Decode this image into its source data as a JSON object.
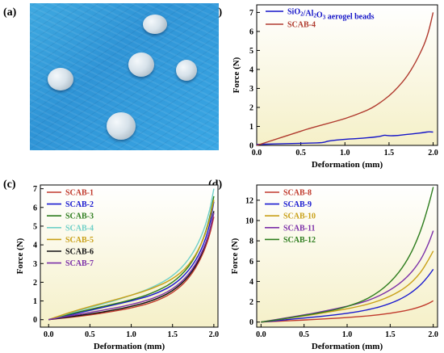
{
  "panels": {
    "a": "(a)",
    "b": "(b)",
    "c": "(c)",
    "d": "(d)"
  },
  "colors": {
    "bg_top": "#ffffff",
    "bg_bottom": "#f5f0c8"
  },
  "chart_data": [
    {
      "id": "b",
      "type": "line",
      "xlabel": "Deformation (mm)",
      "ylabel": "Force (N)",
      "xlim": [
        0,
        2.05
      ],
      "ylim": [
        0,
        7.4
      ],
      "xticks": [
        "0.0",
        "0.5",
        "1.0",
        "1.5",
        "2.0"
      ],
      "yticks": [
        "0",
        "1",
        "2",
        "3",
        "4",
        "5",
        "6",
        "7"
      ],
      "legend": "top-left",
      "series": [
        {
          "name": "SiO2/Al2O3 aerogel beads",
          "label_main": "SiO",
          "label_sub1": "2",
          "label_mid": "/Al",
          "label_sub2": "2",
          "label_o": "O",
          "label_sub3": "3",
          "label_tail": " aerogel beads",
          "color": "#1515c8",
          "x": [
            0,
            0.2,
            0.4,
            0.6,
            0.75,
            0.8,
            0.9,
            1.0,
            1.1,
            1.2,
            1.3,
            1.4,
            1.45,
            1.5,
            1.6,
            1.7,
            1.8,
            1.9,
            1.95,
            2.0
          ],
          "y": [
            0.05,
            0.08,
            0.1,
            0.12,
            0.14,
            0.22,
            0.28,
            0.32,
            0.35,
            0.38,
            0.42,
            0.47,
            0.55,
            0.5,
            0.52,
            0.58,
            0.62,
            0.68,
            0.72,
            0.7
          ]
        },
        {
          "name": "SCAB-4",
          "color": "#b03a2e",
          "x": [
            0,
            0.2,
            0.4,
            0.6,
            0.8,
            1.0,
            1.2,
            1.3,
            1.4,
            1.5,
            1.6,
            1.7,
            1.8,
            1.9,
            1.95,
            2.0
          ],
          "y": [
            0,
            0.3,
            0.6,
            0.9,
            1.15,
            1.4,
            1.75,
            1.95,
            2.25,
            2.6,
            3.05,
            3.6,
            4.35,
            5.3,
            6.0,
            7.0
          ]
        }
      ]
    },
    {
      "id": "c",
      "type": "line",
      "xlabel": "Deformation (mm)",
      "ylabel": "Force (N)",
      "xlim": [
        -0.1,
        2.05
      ],
      "ylim": [
        -0.4,
        7.2
      ],
      "xticks": [
        "0.0",
        "0.5",
        "1.0",
        "1.5",
        "2.0"
      ],
      "yticks": [
        "0",
        "1",
        "2",
        "3",
        "4",
        "5",
        "6",
        "7"
      ],
      "legend": "top-left",
      "series": [
        {
          "name": "SCAB-1",
          "color": "#c0392b",
          "x": [
            0,
            0.25,
            0.5,
            0.75,
            1.0,
            1.25,
            1.5,
            1.7,
            1.85,
            1.95,
            2.0
          ],
          "y": [
            0,
            0.12,
            0.25,
            0.42,
            0.62,
            0.9,
            1.4,
            2.2,
            3.3,
            4.5,
            5.5
          ]
        },
        {
          "name": "SCAB-2",
          "color": "#1a1ad0",
          "x": [
            0,
            0.25,
            0.5,
            0.75,
            1.0,
            1.25,
            1.5,
            1.7,
            1.85,
            1.95,
            2.0
          ],
          "y": [
            0,
            0.25,
            0.5,
            0.75,
            1.0,
            1.3,
            1.8,
            2.6,
            3.7,
            5.0,
            6.3
          ]
        },
        {
          "name": "SCAB-3",
          "color": "#2e7d1e",
          "x": [
            0,
            0.25,
            0.5,
            0.75,
            1.0,
            1.25,
            1.5,
            1.7,
            1.85,
            1.95,
            2.0
          ],
          "y": [
            0,
            0.3,
            0.55,
            0.8,
            1.05,
            1.4,
            1.95,
            2.8,
            4.0,
            5.4,
            6.6
          ]
        },
        {
          "name": "SCAB-4",
          "color": "#6fd0c8",
          "x": [
            0,
            0.25,
            0.5,
            0.75,
            1.0,
            1.25,
            1.5,
            1.7,
            1.85,
            1.95,
            2.0
          ],
          "y": [
            0,
            0.35,
            0.65,
            0.95,
            1.3,
            1.7,
            2.3,
            3.2,
            4.4,
            5.8,
            7.0
          ]
        },
        {
          "name": "SCAB-5",
          "color": "#c9a018",
          "x": [
            0,
            0.25,
            0.5,
            0.75,
            1.0,
            1.25,
            1.5,
            1.7,
            1.85,
            1.95,
            2.0
          ],
          "y": [
            0,
            0.38,
            0.7,
            1.0,
            1.3,
            1.65,
            2.15,
            2.9,
            4.0,
            5.3,
            6.4
          ]
        },
        {
          "name": "SCAB-6",
          "color": "#111111",
          "x": [
            0,
            0.25,
            0.5,
            0.75,
            1.0,
            1.25,
            1.5,
            1.7,
            1.85,
            1.95,
            2.0
          ],
          "y": [
            0,
            0.15,
            0.3,
            0.48,
            0.7,
            1.0,
            1.5,
            2.3,
            3.4,
            4.7,
            5.8
          ]
        },
        {
          "name": "SCAB-7",
          "color": "#7b2fa8",
          "x": [
            0,
            0.25,
            0.5,
            0.75,
            1.0,
            1.25,
            1.5,
            1.7,
            1.85,
            1.95,
            2.0
          ],
          "y": [
            0,
            0.2,
            0.38,
            0.58,
            0.8,
            1.1,
            1.6,
            2.4,
            3.5,
            4.7,
            5.7
          ]
        }
      ]
    },
    {
      "id": "d",
      "type": "line",
      "xlabel": "Deformation (mm)",
      "ylabel": "Force (N)",
      "xlim": [
        -0.05,
        2.05
      ],
      "ylim": [
        -0.5,
        13.5
      ],
      "xticks": [
        "0.0",
        "0.5",
        "1.0",
        "1.5",
        "2.0"
      ],
      "yticks": [
        "0",
        "2",
        "4",
        "6",
        "8",
        "10",
        "12"
      ],
      "legend": "top-left",
      "series": [
        {
          "name": "SCAB-8",
          "color": "#c0392b",
          "x": [
            0,
            0.25,
            0.5,
            0.75,
            1.0,
            1.25,
            1.5,
            1.7,
            1.85,
            1.95,
            2.0
          ],
          "y": [
            0,
            0.1,
            0.2,
            0.32,
            0.45,
            0.6,
            0.85,
            1.15,
            1.5,
            1.85,
            2.1
          ]
        },
        {
          "name": "SCAB-9",
          "color": "#1a1ad0",
          "x": [
            0,
            0.25,
            0.5,
            0.75,
            1.0,
            1.25,
            1.5,
            1.7,
            1.85,
            1.95,
            2.0
          ],
          "y": [
            0,
            0.2,
            0.4,
            0.6,
            0.85,
            1.2,
            1.8,
            2.6,
            3.6,
            4.6,
            5.2
          ]
        },
        {
          "name": "SCAB-10",
          "color": "#c9a018",
          "x": [
            0,
            0.25,
            0.5,
            0.75,
            1.0,
            1.25,
            1.5,
            1.7,
            1.85,
            1.95,
            2.0
          ],
          "y": [
            0,
            0.3,
            0.6,
            0.95,
            1.3,
            1.75,
            2.5,
            3.5,
            4.8,
            6.2,
            7.0
          ]
        },
        {
          "name": "SCAB-11",
          "color": "#7b2fa8",
          "x": [
            0,
            0.25,
            0.5,
            0.75,
            1.0,
            1.25,
            1.5,
            1.7,
            1.85,
            1.95,
            2.0
          ],
          "y": [
            0,
            0.35,
            0.7,
            1.1,
            1.55,
            2.1,
            3.1,
            4.4,
            6.0,
            7.8,
            9.0
          ]
        },
        {
          "name": "SCAB-12",
          "color": "#2e7d1e",
          "x": [
            0,
            0.25,
            0.5,
            0.75,
            1.0,
            1.25,
            1.5,
            1.7,
            1.85,
            1.95,
            2.0
          ],
          "y": [
            0,
            0.3,
            0.65,
            1.0,
            1.5,
            2.3,
            3.8,
            6.0,
            8.8,
            11.6,
            13.3
          ]
        }
      ]
    }
  ]
}
